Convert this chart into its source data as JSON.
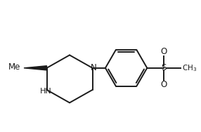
{
  "background_color": "#ffffff",
  "line_color": "#1a1a1a",
  "lw": 1.4,
  "figsize": [
    2.86,
    1.88
  ],
  "dpi": 100,
  "xlim": [
    0,
    10
  ],
  "ylim": [
    0,
    6.6
  ]
}
